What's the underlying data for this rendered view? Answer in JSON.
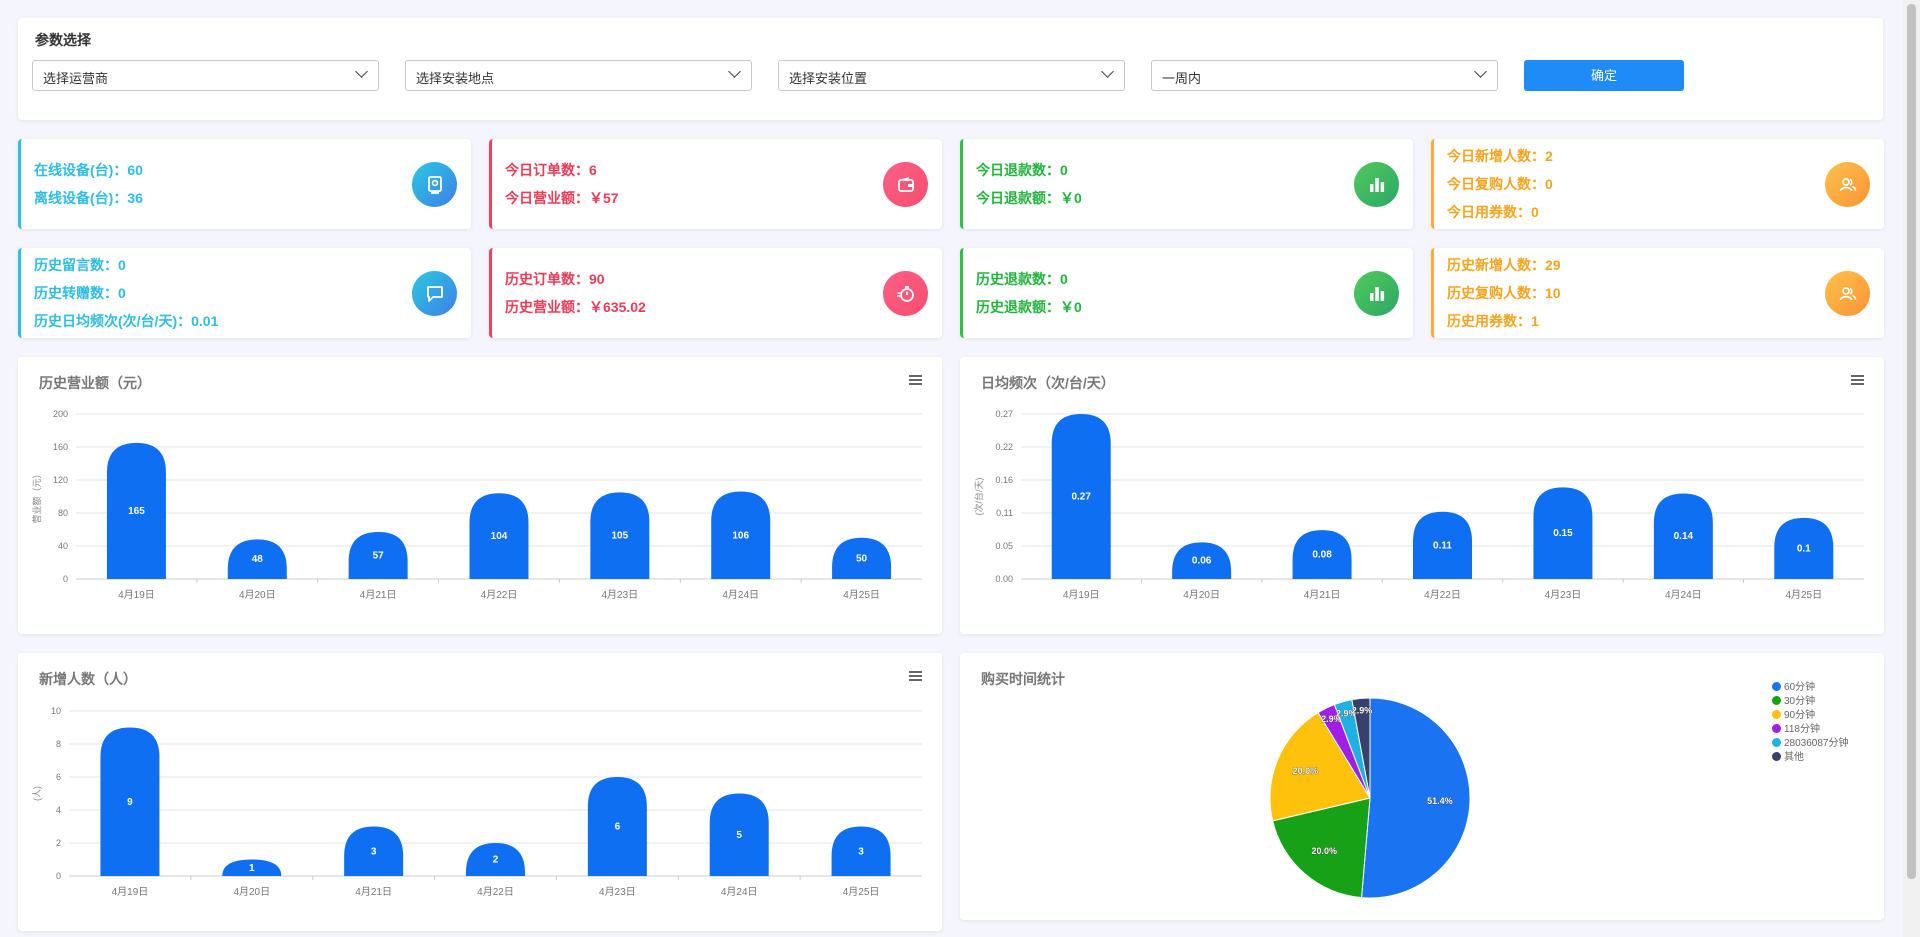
{
  "filter": {
    "title": "参数选择",
    "selects": [
      "选择运营商",
      "选择安装地点",
      "选择安装位置",
      "一周内"
    ],
    "confirm_label": "确定"
  },
  "stats": [
    {
      "lines": [
        "在线设备(台)：60",
        "离线设备(台)：36"
      ],
      "color": "cyan",
      "icon": "monitor-icon"
    },
    {
      "lines": [
        "今日订单数：6",
        "今日营业额：￥57"
      ],
      "color": "red",
      "icon": "wallet-icon"
    },
    {
      "lines": [
        "今日退款数：0",
        "今日退款额：￥0"
      ],
      "color": "green",
      "icon": "bar-chart-icon"
    },
    {
      "lines": [
        "今日新增人数：2",
        "今日复购人数：0",
        "今日用券数：0"
      ],
      "color": "orange",
      "icon": "users-icon"
    },
    {
      "lines": [
        "历史留言数：0",
        "历史转赠数：0",
        "历史日均频次(次/台/天)：0.01"
      ],
      "color": "cyan",
      "icon": "message-icon"
    },
    {
      "lines": [
        "历史订单数：90",
        "历史营业额：￥635.02"
      ],
      "color": "red",
      "icon": "timer-icon"
    },
    {
      "lines": [
        "历史退款数：0",
        "历史退款额：￥0"
      ],
      "color": "green",
      "icon": "bar-chart-icon"
    },
    {
      "lines": [
        "历史新增人数：29",
        "历史复购人数：10",
        "历史用券数：1"
      ],
      "color": "orange",
      "icon": "users-icon"
    }
  ],
  "colors": {
    "bar": "#0f6ff2",
    "cyan": "#2fbde2",
    "red": "#ef3b55",
    "green": "#22b53b",
    "orange": "#f6a41f"
  },
  "chart_data": [
    {
      "type": "bar",
      "title": "历史营业额（元）",
      "ylabel": "营业额（元）",
      "categories": [
        "4月19日",
        "4月20日",
        "4月21日",
        "4月22日",
        "4月23日",
        "4月24日",
        "4月25日"
      ],
      "values": [
        165,
        48,
        57,
        104,
        105,
        106,
        50
      ],
      "ylim": [
        0,
        200
      ],
      "yticks": [
        "0",
        "40",
        "80",
        "120",
        "160",
        "200"
      ],
      "grid": true
    },
    {
      "type": "bar",
      "title": "日均频次（次/台/天）",
      "ylabel": "(次/台/天)",
      "categories": [
        "4月19日",
        "4月20日",
        "4月21日",
        "4月22日",
        "4月23日",
        "4月24日",
        "4月25日"
      ],
      "values": [
        0.27,
        0.06,
        0.08,
        0.11,
        0.15,
        0.14,
        0.1
      ],
      "ylim": [
        0,
        0.27
      ],
      "yticks": [
        "0.00",
        "0.05",
        "0.11",
        "0.16",
        "0.22",
        "0.27"
      ],
      "grid": true
    },
    {
      "type": "bar",
      "title": "新增人数（人）",
      "ylabel": "(人)",
      "categories": [
        "4月19日",
        "4月20日",
        "4月21日",
        "4月22日",
        "4月23日",
        "4月24日",
        "4月25日"
      ],
      "values": [
        9,
        1,
        3,
        2,
        6,
        5,
        3
      ],
      "ylim": [
        0,
        10
      ],
      "yticks": [
        "0",
        "2",
        "4",
        "6",
        "8",
        "10"
      ],
      "grid": true
    },
    {
      "type": "pie",
      "title": "购买时间统计",
      "legend_position": "top-right",
      "slices": [
        {
          "name": "60分钟",
          "value": 51.4,
          "label": "51.4%",
          "color": "#1a73f0"
        },
        {
          "name": "30分钟",
          "value": 20.0,
          "label": "20.0%",
          "color": "#16a116"
        },
        {
          "name": "90分钟",
          "value": 20.0,
          "label": "20.0%",
          "color": "#fec20d"
        },
        {
          "name": "118分钟",
          "value": 2.9,
          "label": "2.9%",
          "color": "#a21ee8"
        },
        {
          "name": "28036087分钟",
          "value": 2.9,
          "label": "2.9%",
          "color": "#1eb2e4"
        },
        {
          "name": "其他",
          "value": 2.9,
          "label": "2.9%",
          "color": "#36416e"
        }
      ]
    }
  ]
}
